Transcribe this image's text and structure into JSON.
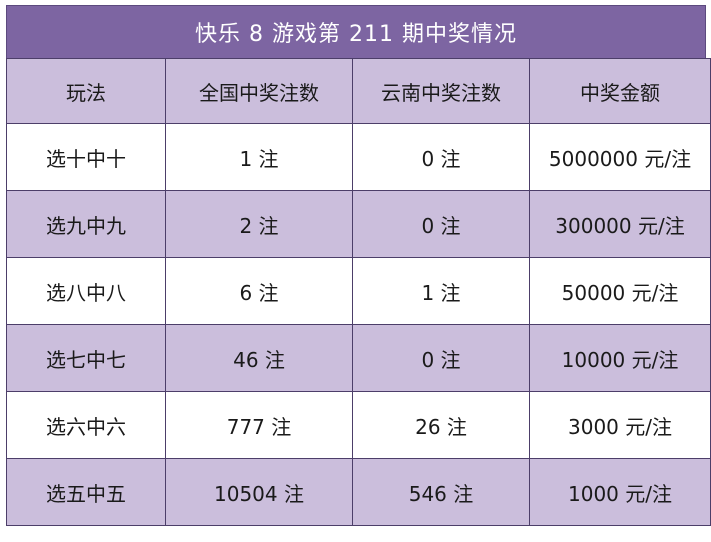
{
  "title": "快乐 8 游戏第 211 期中奖情况",
  "headers": [
    "玩法",
    "全国中奖注数",
    "云南中奖注数",
    "中奖金额"
  ],
  "rows": [
    [
      "选十中十",
      "1 注",
      "0 注",
      "5000000 元/注"
    ],
    [
      "选九中九",
      "2 注",
      "0 注",
      "300000 元/注"
    ],
    [
      "选八中八",
      "6 注",
      "1 注",
      "50000 元/注"
    ],
    [
      "选七中七",
      "46 注",
      "0 注",
      "10000 元/注"
    ],
    [
      "选六中六",
      "777 注",
      "26 注",
      "3000 元/注"
    ],
    [
      "选五中五",
      "10504 注",
      "546 注",
      "1000 元/注"
    ]
  ],
  "colors": {
    "title_bg": "#7d65a2",
    "alt_row_bg": "#cbbedc",
    "border": "#4c3e69"
  }
}
